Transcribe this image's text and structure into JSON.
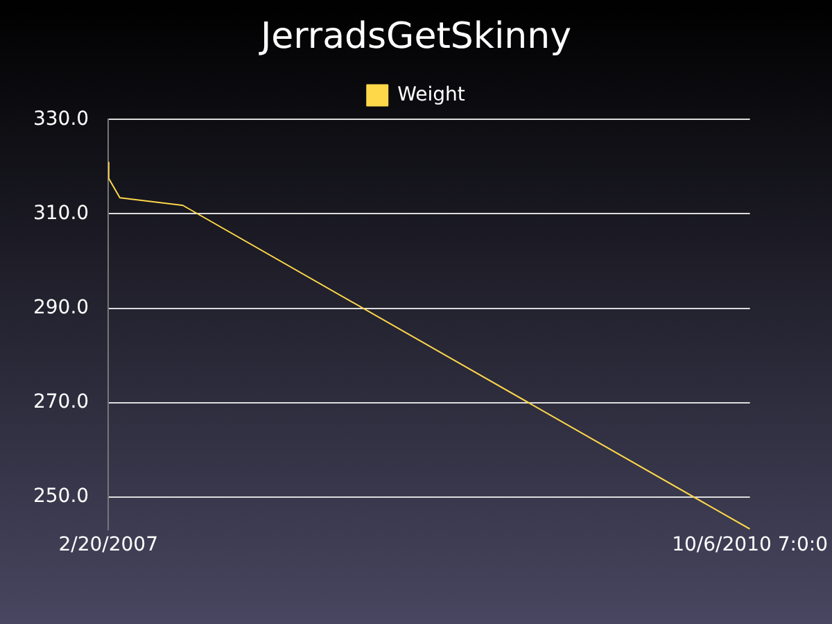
{
  "chart_data": {
    "type": "line",
    "title": "JerradsGetSkinny",
    "x": [
      "2007-02-20",
      "2007-02-21",
      "2007-03-16",
      "2007-07-24",
      "2010-10-06T07:00"
    ],
    "series": [
      {
        "name": "Weight",
        "color": "#ffd84a",
        "values": [
          320.9,
          317.5,
          313.4,
          311.8,
          243.2
        ]
      }
    ],
    "xlim": [
      "2007-02-20",
      "2010-10-06T07:00"
    ],
    "xticks": [
      {
        "value": "2007-02-20",
        "label": "2/20/2007"
      },
      {
        "value": "2010-10-06T07:00",
        "label": "10/6/2010 7:0:0"
      }
    ],
    "ylim": [
      243,
      330
    ],
    "yticks": [
      {
        "value": 250,
        "label": "250.0"
      },
      {
        "value": 270,
        "label": "270.0"
      },
      {
        "value": 290,
        "label": "290.0"
      },
      {
        "value": 310,
        "label": "310.0"
      },
      {
        "value": 330,
        "label": "330.0"
      }
    ],
    "grid": "y",
    "legend": "top",
    "marker": "none",
    "line_style": "solid"
  }
}
